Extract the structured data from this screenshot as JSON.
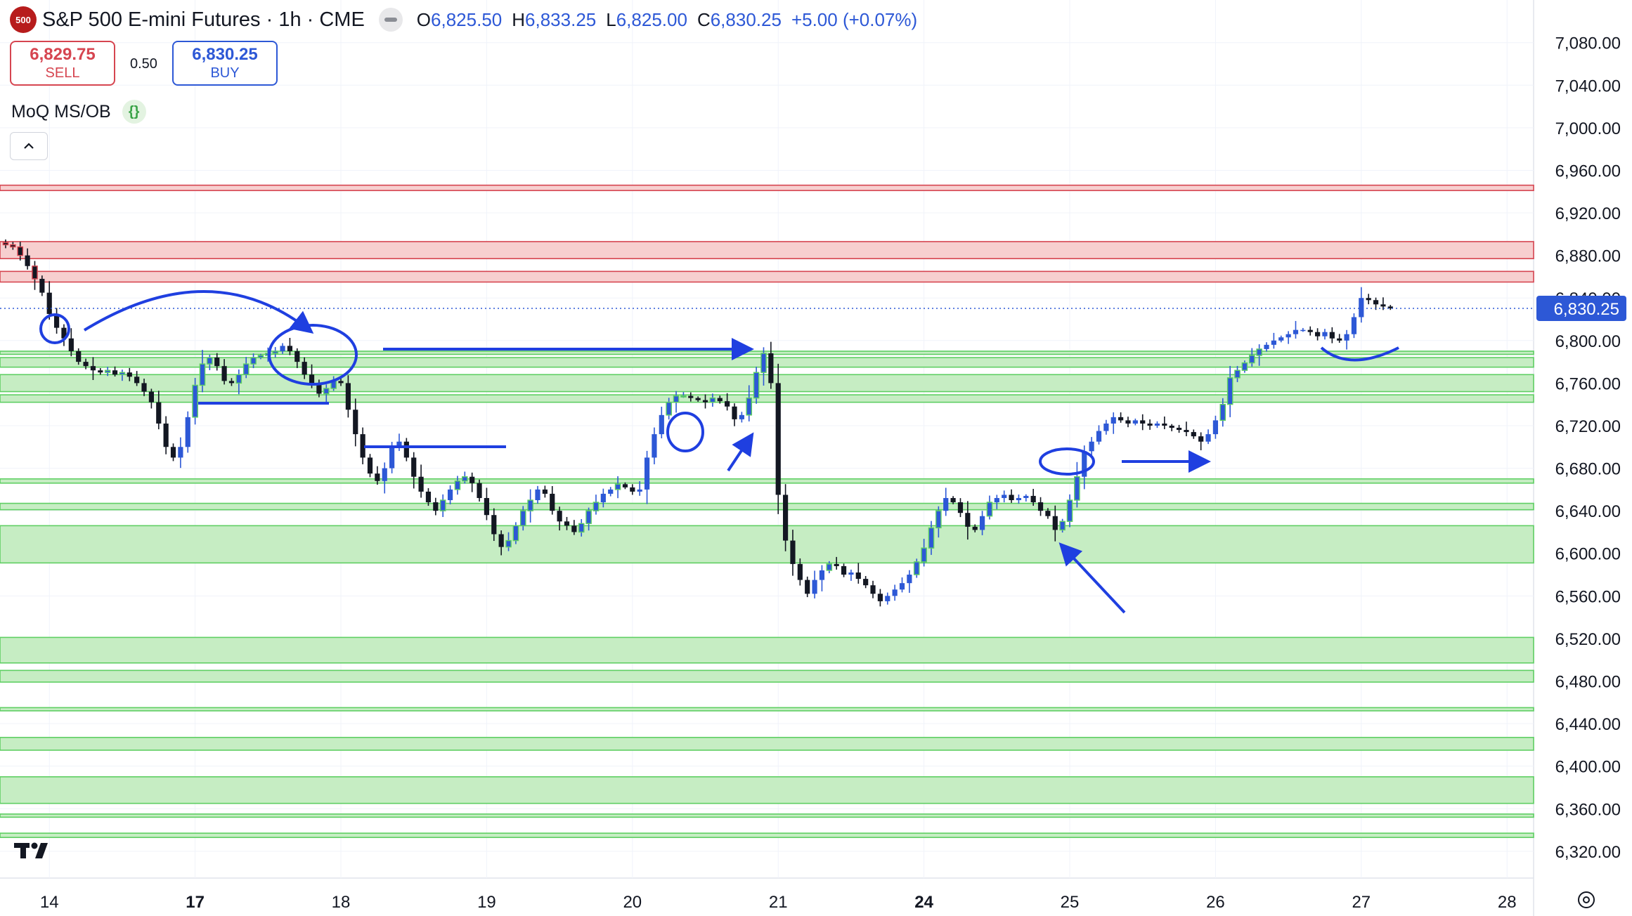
{
  "header": {
    "symbol_badge": "500",
    "title": "S&P 500 E-mini Futures · 1h · CME",
    "ohlc": [
      {
        "key": "O",
        "value": "6,825.50"
      },
      {
        "key": "H",
        "value": "6,833.25"
      },
      {
        "key": "L",
        "value": "6,825.00"
      },
      {
        "key": "C",
        "value": "6,830.25"
      }
    ],
    "change": "+5.00 (+0.07%)"
  },
  "trade": {
    "sell_price": "6,829.75",
    "sell_label": "SELL",
    "spread": "0.50",
    "buy_price": "6,830.25",
    "buy_label": "BUY"
  },
  "indicator": {
    "name": "MoQ MS/OB",
    "source_icon": "curly-braces-icon"
  },
  "icons": {
    "collapse": "chevron-up-icon",
    "settings": "gear-icon",
    "logo": "tradingview-logo"
  },
  "colors": {
    "up": "#2d58d6",
    "down": "#131722",
    "annotation": "#1f3fe0",
    "bullish_zone_fill": "#c6edc3",
    "bullish_zone_line": "#5fcf63",
    "bearish_zone_fill": "#f7cfcf",
    "bearish_zone_line": "#d64550",
    "price_label_bg": "#2d58d6"
  },
  "chart_data": {
    "type": "candlestick",
    "interval": "1h",
    "x_ticks": [
      {
        "label": "14",
        "bold": false,
        "bar": 6
      },
      {
        "label": "17",
        "bold": true,
        "bar": 26
      },
      {
        "label": "18",
        "bold": false,
        "bar": 46
      },
      {
        "label": "19",
        "bold": false,
        "bar": 66
      },
      {
        "label": "20",
        "bold": false,
        "bar": 86
      },
      {
        "label": "21",
        "bold": false,
        "bar": 106
      },
      {
        "label": "24",
        "bold": true,
        "bar": 126
      },
      {
        "label": "25",
        "bold": false,
        "bar": 146
      },
      {
        "label": "26",
        "bold": false,
        "bar": 166
      },
      {
        "label": "27",
        "bold": false,
        "bar": 186
      },
      {
        "label": "28",
        "bold": false,
        "bar": 206
      }
    ],
    "y_ticks": [
      "7,080.00",
      "7,040.00",
      "7,000.00",
      "6,960.00",
      "6,920.00",
      "6,880.00",
      "6,840.00",
      "6,800.00",
      "6,760.00",
      "6,720.00",
      "6,680.00",
      "6,640.00",
      "6,600.00",
      "6,560.00",
      "6,520.00",
      "6,480.00",
      "6,440.00",
      "6,400.00",
      "6,360.00",
      "6,320.00"
    ],
    "y_range": [
      6310,
      7093
    ],
    "current_price": {
      "value": 6830.25,
      "label": "6,830.25"
    },
    "closes": [
      6890,
      6888,
      6880,
      6870,
      6858,
      6845,
      6825,
      6812,
      6802,
      6790,
      6780,
      6776,
      6772,
      6770,
      6772,
      6768,
      6770,
      6766,
      6760,
      6752,
      6742,
      6722,
      6700,
      6690,
      6700,
      6728,
      6758,
      6778,
      6784,
      6776,
      6762,
      6760,
      6768,
      6778,
      6784,
      6786,
      6788,
      6790,
      6795,
      6790,
      6780,
      6768,
      6760,
      6750,
      6755,
      6762,
      6760,
      6735,
      6712,
      6690,
      6675,
      6668,
      6680,
      6700,
      6705,
      6690,
      6672,
      6658,
      6648,
      6640,
      6650,
      6660,
      6668,
      6672,
      6666,
      6652,
      6636,
      6618,
      6606,
      6612,
      6626,
      6640,
      6650,
      6660,
      6656,
      6640,
      6630,
      6626,
      6620,
      6628,
      6640,
      6648,
      6656,
      6660,
      6665,
      6662,
      6658,
      6660,
      6690,
      6712,
      6730,
      6742,
      6748,
      6748,
      6746,
      6744,
      6742,
      6746,
      6743,
      6738,
      6726,
      6730,
      6746,
      6770,
      6788,
      6760,
      6655,
      6612,
      6590,
      6575,
      6562,
      6575,
      6584,
      6590,
      6588,
      6580,
      6582,
      6576,
      6570,
      6562,
      6555,
      6560,
      6566,
      6572,
      6580,
      6592,
      6605,
      6624,
      6640,
      6652,
      6648,
      6638,
      6625,
      6622,
      6635,
      6648,
      6652,
      6655,
      6650,
      6652,
      6654,
      6648,
      6640,
      6635,
      6622,
      6630,
      6650,
      6672,
      6696,
      6705,
      6715,
      6722,
      6728,
      6725,
      6722,
      6725,
      6722,
      6720,
      6722,
      6720,
      6718,
      6716,
      6714,
      6710,
      6705,
      6712,
      6725,
      6740,
      6765,
      6772,
      6779,
      6786,
      6792,
      6796,
      6800,
      6803,
      6806,
      6810,
      6810,
      6808,
      6804,
      6808,
      6802,
      6800,
      6806,
      6822,
      6840,
      6838,
      6834,
      6832,
      6830.25
    ],
    "support_zones": [
      [
        6591,
        6626
      ],
      [
        6641,
        6647
      ],
      [
        6666,
        6670
      ],
      [
        6742,
        6749
      ],
      [
        6752,
        6768
      ],
      [
        6775,
        6784
      ],
      [
        6787,
        6790
      ],
      [
        6497,
        6521
      ],
      [
        6479,
        6490
      ],
      [
        6452,
        6455
      ],
      [
        6415,
        6427
      ],
      [
        6365,
        6390
      ],
      [
        6352,
        6355
      ],
      [
        6333,
        6337
      ]
    ],
    "resistance_zones": [
      [
        6941,
        6946
      ],
      [
        6877,
        6893
      ],
      [
        6855,
        6865
      ]
    ]
  }
}
